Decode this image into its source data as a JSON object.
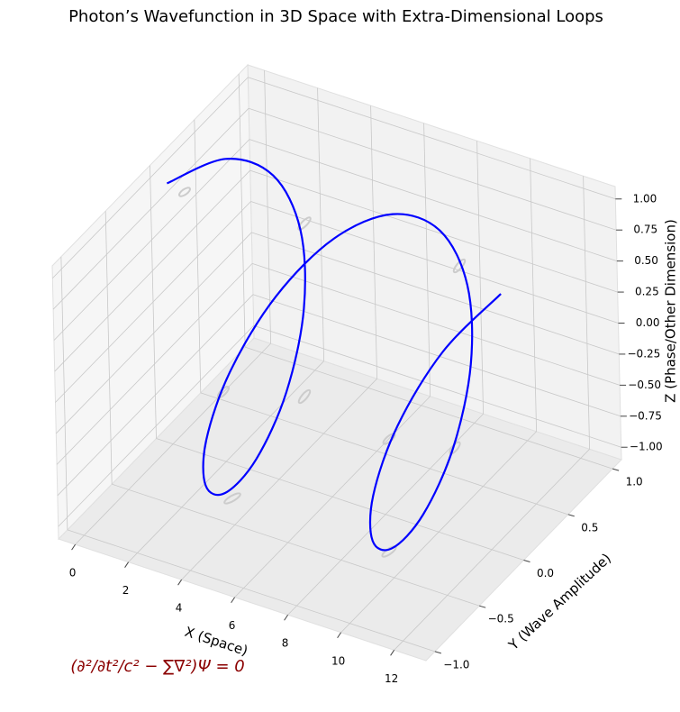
{
  "chart_data": {
    "type": "line3d",
    "title": "Photon’s Wavefunction in 3D Space with Extra-Dimensional Loops",
    "x_label": "X (Space)",
    "y_label": "Y (Wave Amplitude)",
    "z_label": "Z (Phase/Other Dimension)",
    "annotation": "(∂²/∂t²/c² − ∑∇²)Ψ = 0",
    "color": "#0000ff",
    "x": [
      0,
      0.524,
      1.047,
      1.571,
      2.094,
      2.618,
      3.142,
      3.665,
      4.189,
      4.712,
      5.236,
      5.76,
      6.283,
      6.807,
      7.33,
      7.854,
      8.378,
      8.901,
      9.425,
      9.948,
      10.472,
      10.996,
      11.519,
      12.043,
      12.566
    ],
    "y": [
      0,
      0.5,
      0.866,
      1,
      0.866,
      0.5,
      0,
      -0.5,
      -0.866,
      -1,
      -0.866,
      -0.5,
      0,
      0.5,
      0.866,
      1,
      0.866,
      0.5,
      0,
      -0.5,
      -0.866,
      -1,
      -0.866,
      -0.5,
      0
    ],
    "z": [
      1,
      0.866,
      0.5,
      0,
      -0.5,
      -0.866,
      -1,
      -0.866,
      -0.5,
      0,
      0.5,
      0.866,
      1,
      0.866,
      0.5,
      0,
      -0.5,
      -0.866,
      -1,
      -0.866,
      -0.5,
      0,
      0.5,
      0.866,
      1
    ],
    "xlim": [
      -0.63,
      13.2
    ],
    "ylim": [
      -1.1,
      1.1
    ],
    "zlim": [
      -1.1,
      1.1
    ],
    "xticks": [
      0,
      2,
      4,
      6,
      8,
      10,
      12
    ],
    "yticks": [
      {
        "value": -1,
        "label": "−1.0"
      },
      {
        "value": -0.5,
        "label": "−0.5"
      },
      {
        "value": 0,
        "label": "0.0"
      },
      {
        "value": 0.5,
        "label": "0.5"
      },
      {
        "value": 1,
        "label": "1.0"
      }
    ],
    "zticks": [
      {
        "value": -1,
        "label": "−1.00"
      },
      {
        "value": -0.75,
        "label": "−0.75"
      },
      {
        "value": -0.5,
        "label": "−0.50"
      },
      {
        "value": -0.25,
        "label": "−0.25"
      },
      {
        "value": 0,
        "label": "0.00"
      },
      {
        "value": 0.25,
        "label": "0.25"
      },
      {
        "value": 0.5,
        "label": "0.50"
      },
      {
        "value": 0.75,
        "label": "0.75"
      },
      {
        "value": 1,
        "label": "1.00"
      }
    ],
    "grid": true
  }
}
